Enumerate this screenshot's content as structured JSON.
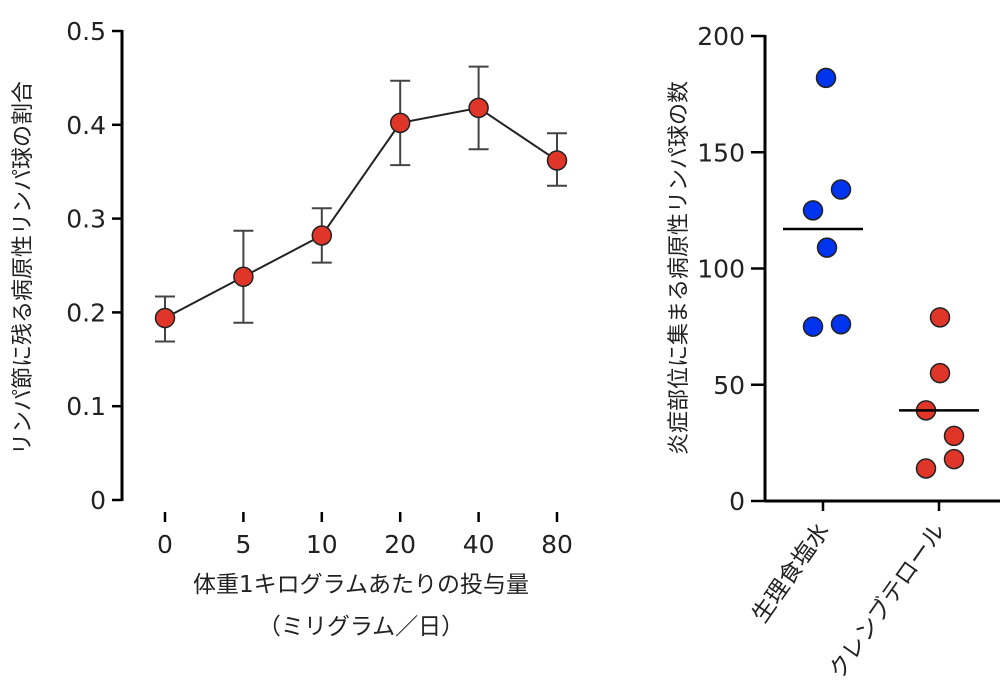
{
  "chart_data": [
    {
      "type": "line",
      "ylabel": "リンパ節に残る病原性リンパ球の割合",
      "xlabel": "体重1キログラムあたりの投与量",
      "xlabel_unit": "（ミリグラム／日）",
      "categories": [
        "0",
        "5",
        "10",
        "20",
        "40",
        "80"
      ],
      "values": [
        0.194,
        0.238,
        0.282,
        0.402,
        0.418,
        0.362
      ],
      "error_upper": [
        0.217,
        0.287,
        0.311,
        0.447,
        0.462,
        0.391
      ],
      "error_lower": [
        0.169,
        0.189,
        0.253,
        0.357,
        0.374,
        0.335
      ],
      "ylim": [
        0,
        0.5
      ],
      "yticks": [
        "0",
        "0.1",
        "0.2",
        "0.3",
        "0.4",
        "0.5"
      ],
      "grid": false,
      "marker_color": "#e0362a"
    },
    {
      "type": "scatter",
      "ylabel": "炎症部位に集まる病原性リンパ球の数",
      "categories": [
        "生理食塩水",
        "クレンブテロール"
      ],
      "series": [
        {
          "values": [
            182,
            134,
            125,
            109,
            75,
            76
          ],
          "mean": 117,
          "color": "#0033ee"
        },
        {
          "values": [
            79,
            55,
            39,
            28,
            18,
            14
          ],
          "mean": 39,
          "color": "#e0362a"
        }
      ],
      "ylim": [
        0,
        200
      ],
      "yticks": [
        "0",
        "50",
        "100",
        "150",
        "200"
      ],
      "grid": false
    }
  ]
}
